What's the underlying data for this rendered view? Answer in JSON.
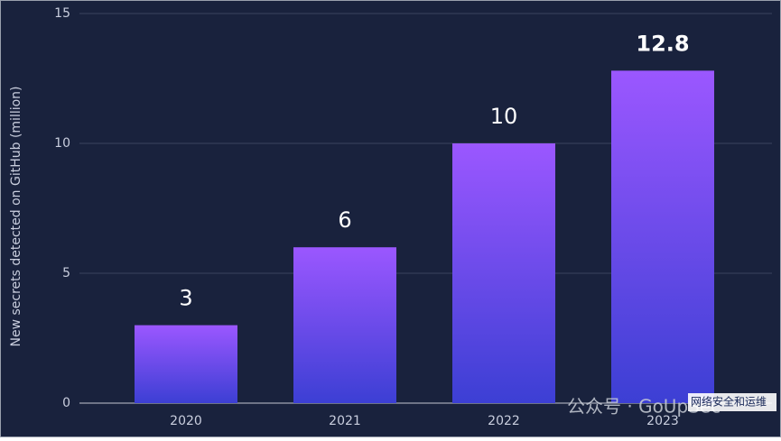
{
  "chart_data": {
    "type": "bar",
    "y_label": "New secrets detected on GitHub (million)",
    "categories": [
      "2020",
      "2021",
      "2022",
      "2023"
    ],
    "values": [
      3,
      6,
      10,
      12.8
    ],
    "colors": [
      "#9b57ff",
      "#3c3fd4"
    ],
    "ylim": [
      0,
      15
    ],
    "yticks": [
      0,
      5,
      10,
      15
    ],
    "grid": true
  },
  "watermark": {
    "text": "公众号 · GoUpSec",
    "logo": "网络安全和运维"
  }
}
